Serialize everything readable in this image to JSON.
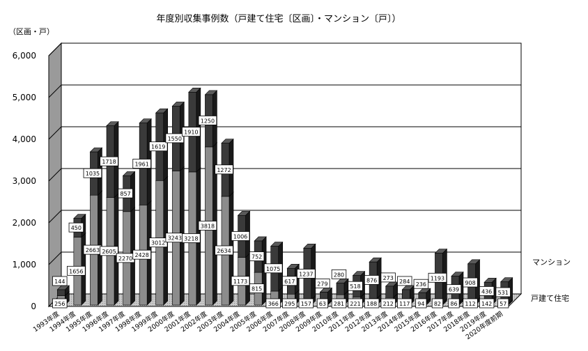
{
  "chart_data": {
    "type": "bar",
    "title": "年度別収集事例数（戸建て住宅〔区画〕・マンション〔戸〕）",
    "ylabel": "（区画・戸）",
    "xlabel": "",
    "ylim": [
      0,
      6000
    ],
    "yticks": [
      "0",
      "1,000",
      "2,000",
      "3,000",
      "4,000",
      "5,000",
      "6,000"
    ],
    "grid": true,
    "stacked": true,
    "categories": [
      "1993年度",
      "1994年度",
      "1995年度",
      "1996年度",
      "1997年度",
      "1998年度",
      "1999年度",
      "2000年度",
      "2001年度",
      "2002年度",
      "2003年度",
      "2004年度",
      "2005年度",
      "2006年度",
      "2007年度",
      "2008年度",
      "2009年度",
      "2010年度",
      "2011年度",
      "2012年度",
      "2013年度",
      "2014年度",
      "2015年度",
      "2016年度",
      "2017年度",
      "2018年度",
      "2019年度",
      "2020年度前期"
    ],
    "series": [
      {
        "name": "戸建て住宅",
        "values": [
          256,
          1656,
          2663,
          2605,
          2270,
          2428,
          3012,
          3243,
          3218,
          3818,
          2634,
          1173,
          815,
          366,
          295,
          157,
          63,
          281,
          221,
          188,
          212,
          117,
          94,
          82,
          86,
          112,
          142,
          57
        ]
      },
      {
        "name": "マンション",
        "values": [
          144,
          450,
          1035,
          1718,
          857,
          1961,
          1619,
          1550,
          1910,
          1250,
          1272,
          1006,
          752,
          1075,
          617,
          1237,
          279,
          280,
          518,
          876,
          273,
          284,
          236,
          1193,
          639,
          908,
          436,
          531
        ]
      }
    ],
    "legend": [
      "マンション",
      "戸建て住宅"
    ],
    "legend_position": "right",
    "colors": {
      "detached": "#8c8c8c",
      "mansion": "#3a3a3a",
      "floor": "#c8c8c8",
      "wall": "#ffffff"
    }
  }
}
